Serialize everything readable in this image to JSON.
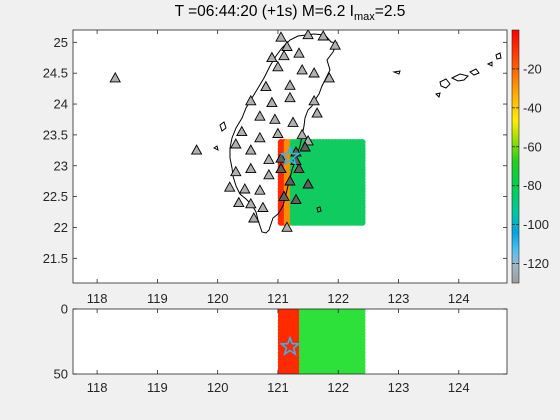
{
  "title": {
    "prefix": "T =06:44:20 (+1s) M=6.2 I",
    "subscript": "max",
    "suffix": "=2.5"
  },
  "chart_data": [
    {
      "type": "scatter",
      "panel": "map",
      "xlim": [
        117.6,
        124.8
      ],
      "ylim": [
        21.1,
        25.2
      ],
      "yticks": [
        "21.5",
        "22",
        "22.5",
        "23",
        "23.5",
        "24",
        "24.5",
        "25"
      ],
      "epicenter": {
        "lon": 121.2,
        "lat": 23.15
      },
      "grid_extent": {
        "lon": [
          121.05,
          122.4
        ],
        "lat": [
          22.08,
          23.38
        ]
      },
      "grid_colors": {
        "west_column": "#ff2a00",
        "second_column": "#ff8c00",
        "body": "#10cc60"
      },
      "stations": [
        [
          118.3,
          24.42
        ],
        [
          119.65,
          23.25
        ],
        [
          121.05,
          25.08
        ],
        [
          121.15,
          24.93
        ],
        [
          121.35,
          24.82
        ],
        [
          121.5,
          25.12
        ],
        [
          121.75,
          25.1
        ],
        [
          121.95,
          24.95
        ],
        [
          120.9,
          24.75
        ],
        [
          121.1,
          24.78
        ],
        [
          121.4,
          24.55
        ],
        [
          121.6,
          24.5
        ],
        [
          121.85,
          24.42
        ],
        [
          121.0,
          24.6
        ],
        [
          120.8,
          24.28
        ],
        [
          121.2,
          24.3
        ],
        [
          120.55,
          24.05
        ],
        [
          120.9,
          24.02
        ],
        [
          121.2,
          24.1
        ],
        [
          121.6,
          24.05
        ],
        [
          120.7,
          23.8
        ],
        [
          120.95,
          23.75
        ],
        [
          121.25,
          23.7
        ],
        [
          121.65,
          23.85
        ],
        [
          120.4,
          23.55
        ],
        [
          120.7,
          23.45
        ],
        [
          121.0,
          23.52
        ],
        [
          121.4,
          23.5
        ],
        [
          121.5,
          23.4
        ],
        [
          120.3,
          23.35
        ],
        [
          120.55,
          23.25
        ],
        [
          120.85,
          23.1
        ],
        [
          121.05,
          23.12
        ],
        [
          121.3,
          23.22
        ],
        [
          121.45,
          23.3
        ],
        [
          120.3,
          22.9
        ],
        [
          120.55,
          22.95
        ],
        [
          120.85,
          22.85
        ],
        [
          121.05,
          22.95
        ],
        [
          121.2,
          22.75
        ],
        [
          121.5,
          22.7
        ],
        [
          120.2,
          22.65
        ],
        [
          120.45,
          22.62
        ],
        [
          120.7,
          22.6
        ],
        [
          121.1,
          22.5
        ],
        [
          121.3,
          22.45
        ],
        [
          120.35,
          22.4
        ],
        [
          120.55,
          22.38
        ],
        [
          120.75,
          22.32
        ],
        [
          120.6,
          22.15
        ],
        [
          121.15,
          22.0
        ],
        [
          121.35,
          22.95
        ],
        [
          121.3,
          23.08
        ]
      ],
      "colorbar": {
        "ticks": [
          "-20",
          "-40",
          "-60",
          "-80",
          "-100",
          "-120"
        ],
        "min": -130,
        "max": 0
      }
    },
    {
      "type": "scatter",
      "panel": "depth-section",
      "xlim": [
        117.6,
        124.8
      ],
      "ylim": [
        50,
        0
      ],
      "xticks": [
        "118",
        "119",
        "120",
        "121",
        "122",
        "123",
        "124"
      ],
      "yticks": [
        "0",
        "50"
      ],
      "epicenter": {
        "lon": 121.2,
        "depth": 29
      },
      "grid_extent": {
        "lon": [
          121.05,
          122.4
        ],
        "depth": [
          0,
          50
        ]
      },
      "grid_colors": {
        "west_part": "#ff2a00",
        "body": "#2ee03a"
      }
    }
  ]
}
